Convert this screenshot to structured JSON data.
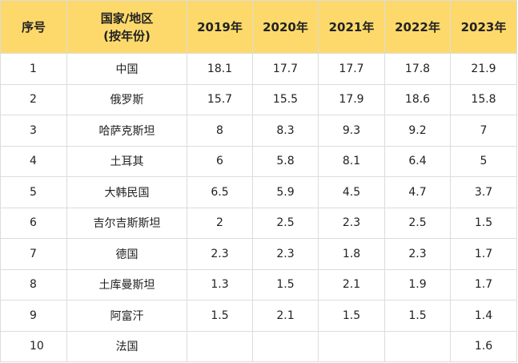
{
  "table": {
    "header": [
      "序号",
      [
        "国家/地区",
        "(按年份)"
      ],
      "2019年",
      "2020年",
      "2021年",
      "2022年",
      "2023年"
    ],
    "rows": [
      [
        1,
        "中国",
        18.1,
        17.7,
        17.7,
        17.8,
        21.9
      ],
      [
        2,
        "俄罗斯",
        15.7,
        15.5,
        17.9,
        18.6,
        15.8
      ],
      [
        3,
        "哈萨克斯坦",
        8,
        8.3,
        9.3,
        9.2,
        7
      ],
      [
        4,
        "土耳其",
        6,
        5.8,
        8.1,
        6.4,
        5
      ],
      [
        5,
        "大韩民国",
        6.5,
        5.9,
        4.5,
        4.7,
        3.7
      ],
      [
        6,
        "吉尔吉斯斯坦",
        2,
        2.5,
        2.3,
        2.5,
        1.5
      ],
      [
        7,
        "德国",
        2.3,
        2.3,
        1.8,
        2.3,
        1.7
      ],
      [
        8,
        "土库曼斯坦",
        1.3,
        1.5,
        2.1,
        1.9,
        1.7
      ],
      [
        9,
        "阿富汗",
        1.5,
        2.1,
        1.5,
        1.5,
        1.4
      ],
      [
        10,
        "法国",
        null,
        null,
        null,
        null,
        1.6
      ]
    ]
  }
}
